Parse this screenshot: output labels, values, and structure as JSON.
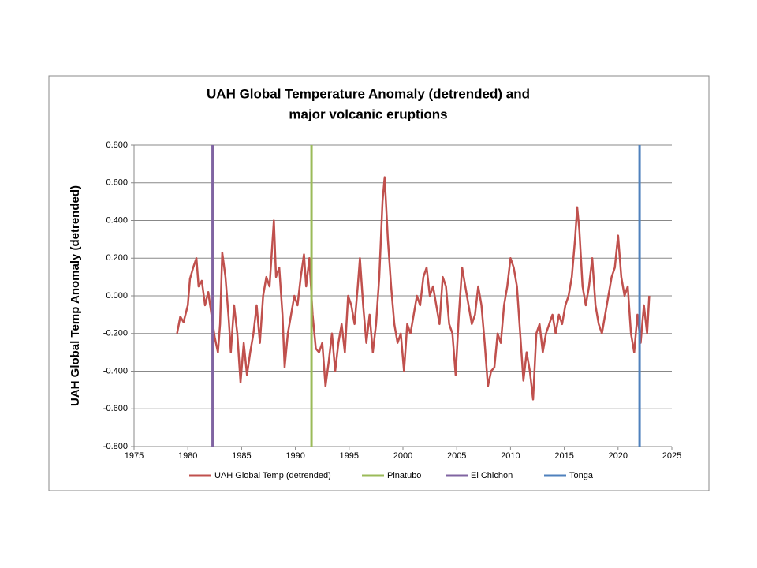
{
  "chart_data": {
    "type": "line",
    "title": [
      "UAH Global Temperature Anomaly (detrended) and",
      "major volcanic eruptions"
    ],
    "y_label": "UAH Global Temp Anomaly (detrended)",
    "xlim": [
      1975,
      2025
    ],
    "xticks": [
      1975,
      1980,
      1985,
      1990,
      1995,
      2000,
      2005,
      2010,
      2015,
      2020,
      2025
    ],
    "ylim": [
      -0.8,
      0.8
    ],
    "yticks": [
      {
        "value": -0.8,
        "label": "-0.800"
      },
      {
        "value": -0.6,
        "label": "-0.600"
      },
      {
        "value": -0.4,
        "label": "-0.400"
      },
      {
        "value": -0.2,
        "label": "-0.200"
      },
      {
        "value": 0,
        "label": "0.000"
      },
      {
        "value": 0.2,
        "label": "0.200"
      },
      {
        "value": 0.4,
        "label": "0.400"
      },
      {
        "value": 0.6,
        "label": "0.600"
      },
      {
        "value": 0.8,
        "label": "0.800"
      }
    ],
    "grid": true,
    "legend": "bottom",
    "series": [
      {
        "name": "UAH Global Temp (detrended)",
        "color": "#c0504d",
        "x": [
          1979.0,
          1979.3,
          1979.6,
          1980.0,
          1980.2,
          1980.5,
          1980.8,
          1981.0,
          1981.3,
          1981.6,
          1981.9,
          1982.2,
          1982.5,
          1982.8,
          1983.0,
          1983.2,
          1983.5,
          1983.8,
          1984.0,
          1984.3,
          1984.6,
          1984.9,
          1985.2,
          1985.5,
          1985.8,
          1986.1,
          1986.4,
          1986.7,
          1987.0,
          1987.3,
          1987.6,
          1988.0,
          1988.2,
          1988.5,
          1988.8,
          1989.0,
          1989.3,
          1989.6,
          1989.9,
          1990.2,
          1990.5,
          1990.8,
          1991.0,
          1991.3,
          1991.6,
          1991.9,
          1992.2,
          1992.5,
          1992.8,
          1993.1,
          1993.4,
          1993.7,
          1994.0,
          1994.3,
          1994.6,
          1994.9,
          1995.2,
          1995.5,
          1995.8,
          1996.0,
          1996.3,
          1996.6,
          1996.9,
          1997.2,
          1997.5,
          1997.8,
          1998.1,
          1998.3,
          1998.6,
          1998.9,
          1999.2,
          1999.5,
          1999.8,
          2000.1,
          2000.4,
          2000.7,
          2001.0,
          2001.3,
          2001.6,
          2001.9,
          2002.2,
          2002.5,
          2002.8,
          2003.1,
          2003.4,
          2003.7,
          2004.0,
          2004.3,
          2004.6,
          2004.9,
          2005.2,
          2005.5,
          2005.8,
          2006.1,
          2006.4,
          2006.7,
          2007.0,
          2007.3,
          2007.6,
          2007.9,
          2008.2,
          2008.5,
          2008.8,
          2009.1,
          2009.4,
          2009.7,
          2010.0,
          2010.3,
          2010.6,
          2010.9,
          2011.2,
          2011.5,
          2011.8,
          2012.1,
          2012.4,
          2012.7,
          2013.0,
          2013.3,
          2013.6,
          2013.9,
          2014.2,
          2014.5,
          2014.8,
          2015.1,
          2015.4,
          2015.7,
          2016.0,
          2016.2,
          2016.4,
          2016.7,
          2017.0,
          2017.3,
          2017.6,
          2017.9,
          2018.2,
          2018.5,
          2018.8,
          2019.1,
          2019.4,
          2019.7,
          2020.0,
          2020.3,
          2020.6,
          2020.9,
          2021.2,
          2021.5,
          2021.8,
          2022.1,
          2022.4,
          2022.7,
          2022.9
        ],
        "values": [
          -0.2,
          -0.11,
          -0.14,
          -0.05,
          0.09,
          0.15,
          0.2,
          0.05,
          0.08,
          -0.05,
          0.02,
          -0.1,
          -0.22,
          -0.3,
          -0.15,
          0.23,
          0.1,
          -0.12,
          -0.3,
          -0.05,
          -0.2,
          -0.46,
          -0.25,
          -0.42,
          -0.3,
          -0.2,
          -0.05,
          -0.25,
          0.0,
          0.1,
          0.05,
          0.4,
          0.1,
          0.15,
          -0.1,
          -0.38,
          -0.2,
          -0.1,
          0.0,
          -0.05,
          0.1,
          0.22,
          0.05,
          0.2,
          -0.1,
          -0.28,
          -0.3,
          -0.25,
          -0.48,
          -0.35,
          -0.2,
          -0.4,
          -0.25,
          -0.15,
          -0.3,
          0.0,
          -0.05,
          -0.15,
          0.05,
          0.2,
          -0.05,
          -0.25,
          -0.1,
          -0.3,
          -0.15,
          0.1,
          0.5,
          0.63,
          0.3,
          0.05,
          -0.15,
          -0.25,
          -0.2,
          -0.4,
          -0.15,
          -0.2,
          -0.1,
          0.0,
          -0.05,
          0.1,
          0.15,
          0.0,
          0.05,
          -0.05,
          -0.15,
          0.1,
          0.05,
          -0.15,
          -0.2,
          -0.42,
          -0.1,
          0.15,
          0.05,
          -0.05,
          -0.15,
          -0.1,
          0.05,
          -0.05,
          -0.25,
          -0.48,
          -0.4,
          -0.38,
          -0.2,
          -0.25,
          -0.05,
          0.05,
          0.2,
          0.15,
          0.05,
          -0.2,
          -0.45,
          -0.3,
          -0.4,
          -0.55,
          -0.2,
          -0.15,
          -0.3,
          -0.2,
          -0.15,
          -0.1,
          -0.2,
          -0.1,
          -0.15,
          -0.05,
          0.0,
          0.1,
          0.3,
          0.47,
          0.35,
          0.05,
          -0.05,
          0.05,
          0.2,
          -0.05,
          -0.15,
          -0.2,
          -0.1,
          0.0,
          0.1,
          0.15,
          0.32,
          0.1,
          0.0,
          0.05,
          -0.2,
          -0.3,
          -0.1,
          -0.25,
          -0.05,
          -0.2,
          0.0
        ]
      },
      {
        "name": "Pinatubo",
        "color": "#9bbb59",
        "x": [
          1991.5,
          1991.5
        ],
        "values": [
          -0.8,
          0.8
        ]
      },
      {
        "name": "El Chichon",
        "color": "#8064a2",
        "x": [
          1982.3,
          1982.3
        ],
        "values": [
          -0.8,
          0.8
        ]
      },
      {
        "name": "Tonga",
        "color": "#4f81bd",
        "x": [
          2022.0,
          2022.0
        ],
        "values": [
          -0.8,
          0.8
        ]
      }
    ]
  }
}
